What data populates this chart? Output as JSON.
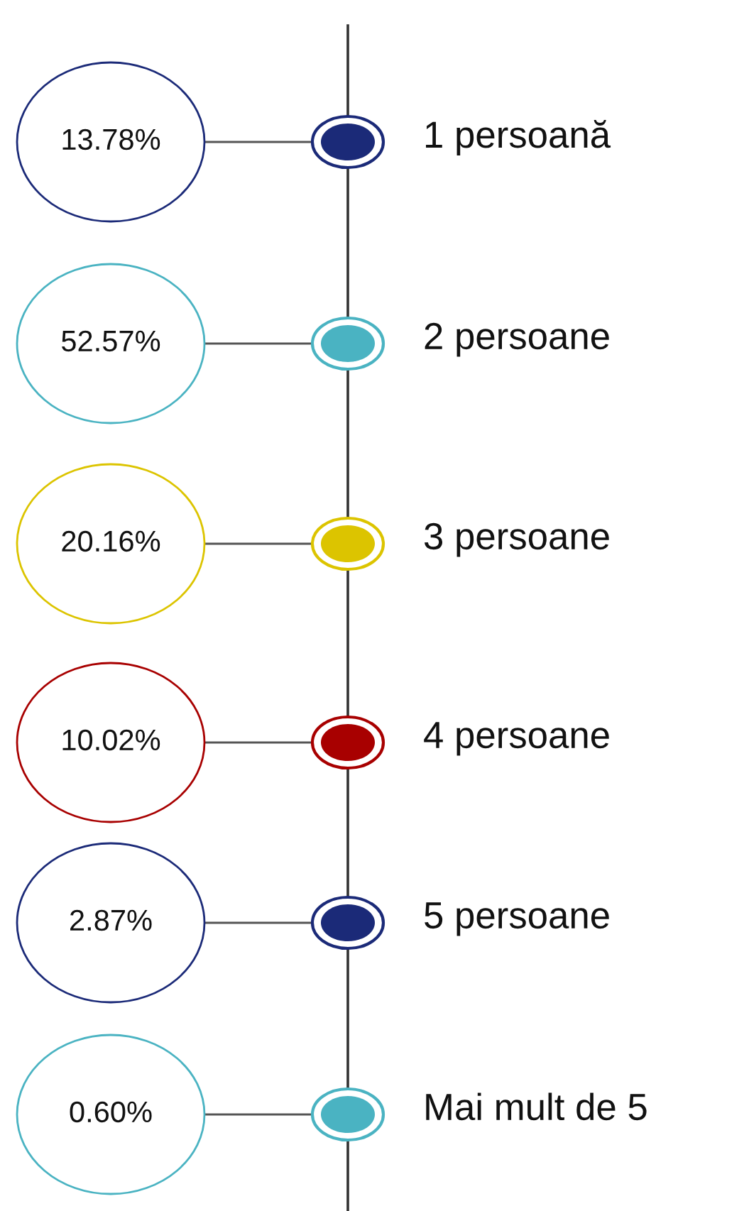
{
  "chart_data": {
    "type": "other",
    "categories": [
      "1 persoană",
      "2 persoane",
      "3 persoane",
      "4 persoane",
      "5 persoane",
      "Mai mult de 5"
    ],
    "values": [
      13.78,
      52.57,
      20.16,
      10.02,
      2.87,
      0.6
    ],
    "value_labels": [
      "13.78%",
      "52.57%",
      "20.16%",
      "10.02%",
      "2.87%",
      "0.60%"
    ],
    "colors": [
      "#1b2a78",
      "#4ab3c2",
      "#dcc400",
      "#a80000",
      "#1b2a78",
      "#4ab3c2"
    ]
  }
}
